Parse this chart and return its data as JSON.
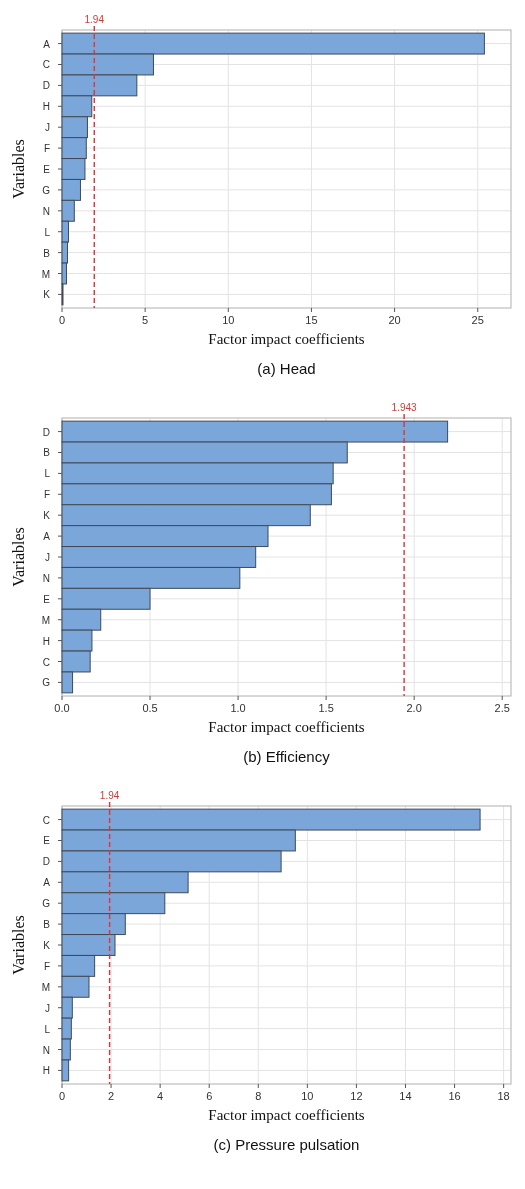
{
  "chart_data": [
    {
      "type": "bar",
      "orientation": "horizontal",
      "title": "(a) Head",
      "xlabel": "Factor impact coefficients",
      "ylabel": "Variables",
      "categories": [
        "A",
        "C",
        "D",
        "H",
        "J",
        "F",
        "E",
        "G",
        "N",
        "L",
        "B",
        "M",
        "K"
      ],
      "series": [
        {
          "color": "#7aa6da",
          "values": [
            25.4,
            5.5,
            4.5,
            1.79,
            1.53,
            1.46,
            1.38,
            1.11,
            0.74,
            0.39,
            0.33,
            0.27,
            0.06
          ]
        }
      ],
      "xlim": [
        0,
        27
      ],
      "xticks": [
        0,
        5,
        10,
        15,
        20,
        25
      ],
      "grid": true,
      "ref_lines": [
        {
          "axis": "x",
          "value": 1.94,
          "label": "1.94",
          "color": "#d03a3a",
          "line_style": "dashed"
        }
      ]
    },
    {
      "type": "bar",
      "orientation": "horizontal",
      "title": "(b) Efficiency",
      "xlabel": "Factor impact coefficients",
      "ylabel": "Variables",
      "categories": [
        "D",
        "B",
        "L",
        "F",
        "K",
        "A",
        "J",
        "N",
        "E",
        "M",
        "H",
        "C",
        "G"
      ],
      "series": [
        {
          "color": "#7aa6da",
          "values": [
            2.19,
            1.62,
            1.54,
            1.53,
            1.41,
            1.17,
            1.1,
            1.01,
            0.5,
            0.22,
            0.17,
            0.16,
            0.06
          ]
        }
      ],
      "xlim": [
        0,
        2.55
      ],
      "xticks": [
        {
          "value": 0,
          "label": "0.0"
        },
        {
          "value": 0.5,
          "label": "0.5"
        },
        {
          "value": 1,
          "label": "1.0"
        },
        {
          "value": 1.5,
          "label": "1.5"
        },
        {
          "value": 2,
          "label": "2.0"
        },
        {
          "value": 2.5,
          "label": "2.5"
        }
      ],
      "grid": true,
      "ref_lines": [
        {
          "axis": "x",
          "value": 1.943,
          "label": "1.943",
          "color": "#d03a3a",
          "line_style": "dashed"
        }
      ]
    },
    {
      "type": "bar",
      "orientation": "horizontal",
      "title": "(c) Pressure pulsation",
      "xlabel": "Factor impact coefficients",
      "ylabel": "Variables",
      "categories": [
        "C",
        "E",
        "D",
        "A",
        "G",
        "B",
        "K",
        "F",
        "M",
        "J",
        "L",
        "N",
        "H"
      ],
      "series": [
        {
          "color": "#7aa6da",
          "values": [
            17.04,
            9.51,
            8.93,
            5.14,
            4.19,
            2.58,
            2.16,
            1.33,
            1.1,
            0.42,
            0.38,
            0.34,
            0.27
          ]
        }
      ],
      "xlim": [
        0,
        18.3
      ],
      "xticks": [
        0,
        2,
        4,
        6,
        8,
        10,
        12,
        14,
        16,
        18
      ],
      "grid": true,
      "ref_lines": [
        {
          "axis": "x",
          "value": 1.94,
          "label": "1.94",
          "color": "#d03a3a",
          "line_style": "dashed"
        }
      ]
    }
  ]
}
